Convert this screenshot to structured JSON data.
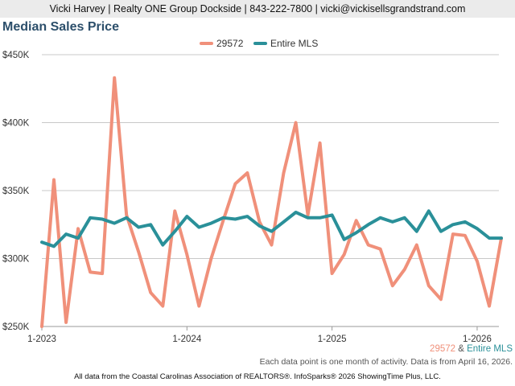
{
  "header": {
    "contact": "Vicki Harvey | Realty ONE Group Dockside | 843-222-7800 | vicki@vickisellsgrandstrand.com"
  },
  "footer": {
    "note": "Each data point is one month of activity. Data is from April 16, 2026.",
    "source": "All data from the Coastal Carolinas Association of REALTORS®. InfoSparks® 2026 ShowingTime Plus, LLC.",
    "legend_series1": "29572",
    "legend_amp": "&",
    "legend_series2": "Entire MLS"
  },
  "chart_data": {
    "type": "line",
    "title": "Median Sales Price",
    "xlabel": "",
    "ylabel": "",
    "ylim": [
      250000,
      450000
    ],
    "yticks": [
      250000,
      300000,
      350000,
      400000,
      450000
    ],
    "ytick_labels": [
      "$250K",
      "$300K",
      "$350K",
      "$400K",
      "$450K"
    ],
    "xticks": [
      {
        "index": 0,
        "label": "1-2023"
      },
      {
        "index": 12,
        "label": "1-2024"
      },
      {
        "index": 24,
        "label": "1-2025"
      },
      {
        "index": 36,
        "label": "1-2026"
      }
    ],
    "x": [
      "1-2023",
      "2-2023",
      "3-2023",
      "4-2023",
      "5-2023",
      "6-2023",
      "7-2023",
      "8-2023",
      "9-2023",
      "10-2023",
      "11-2023",
      "12-2023",
      "1-2024",
      "2-2024",
      "3-2024",
      "4-2024",
      "5-2024",
      "6-2024",
      "7-2024",
      "8-2024",
      "9-2024",
      "10-2024",
      "11-2024",
      "12-2024",
      "1-2025",
      "2-2025",
      "3-2025",
      "4-2025",
      "5-2025",
      "6-2025",
      "7-2025",
      "8-2025",
      "9-2025",
      "10-2025",
      "11-2025",
      "12-2025",
      "1-2026",
      "2-2026",
      "3-2026"
    ],
    "grid": true,
    "legend": "top-center",
    "series": [
      {
        "name": "29572",
        "color": "#f0907a",
        "values": [
          250000,
          358000,
          253000,
          322000,
          290000,
          289000,
          433000,
          332000,
          305000,
          275000,
          265000,
          335000,
          303000,
          265000,
          300000,
          328000,
          355000,
          363000,
          327000,
          310000,
          363000,
          400000,
          332000,
          385000,
          289000,
          303000,
          328000,
          310000,
          307000,
          280000,
          292000,
          310000,
          280000,
          270000,
          318000,
          317000,
          298000,
          265000,
          315000
        ]
      },
      {
        "name": "Entire MLS",
        "color": "#2a9099",
        "values": [
          312000,
          309000,
          318000,
          315000,
          330000,
          329000,
          326000,
          330000,
          323000,
          325000,
          310000,
          320000,
          331000,
          323000,
          326000,
          330000,
          329000,
          331000,
          324000,
          320000,
          327000,
          334000,
          330000,
          330000,
          332000,
          314000,
          319000,
          325000,
          330000,
          327000,
          330000,
          320000,
          335000,
          320000,
          325000,
          327000,
          322000,
          315000,
          315000
        ]
      }
    ]
  }
}
